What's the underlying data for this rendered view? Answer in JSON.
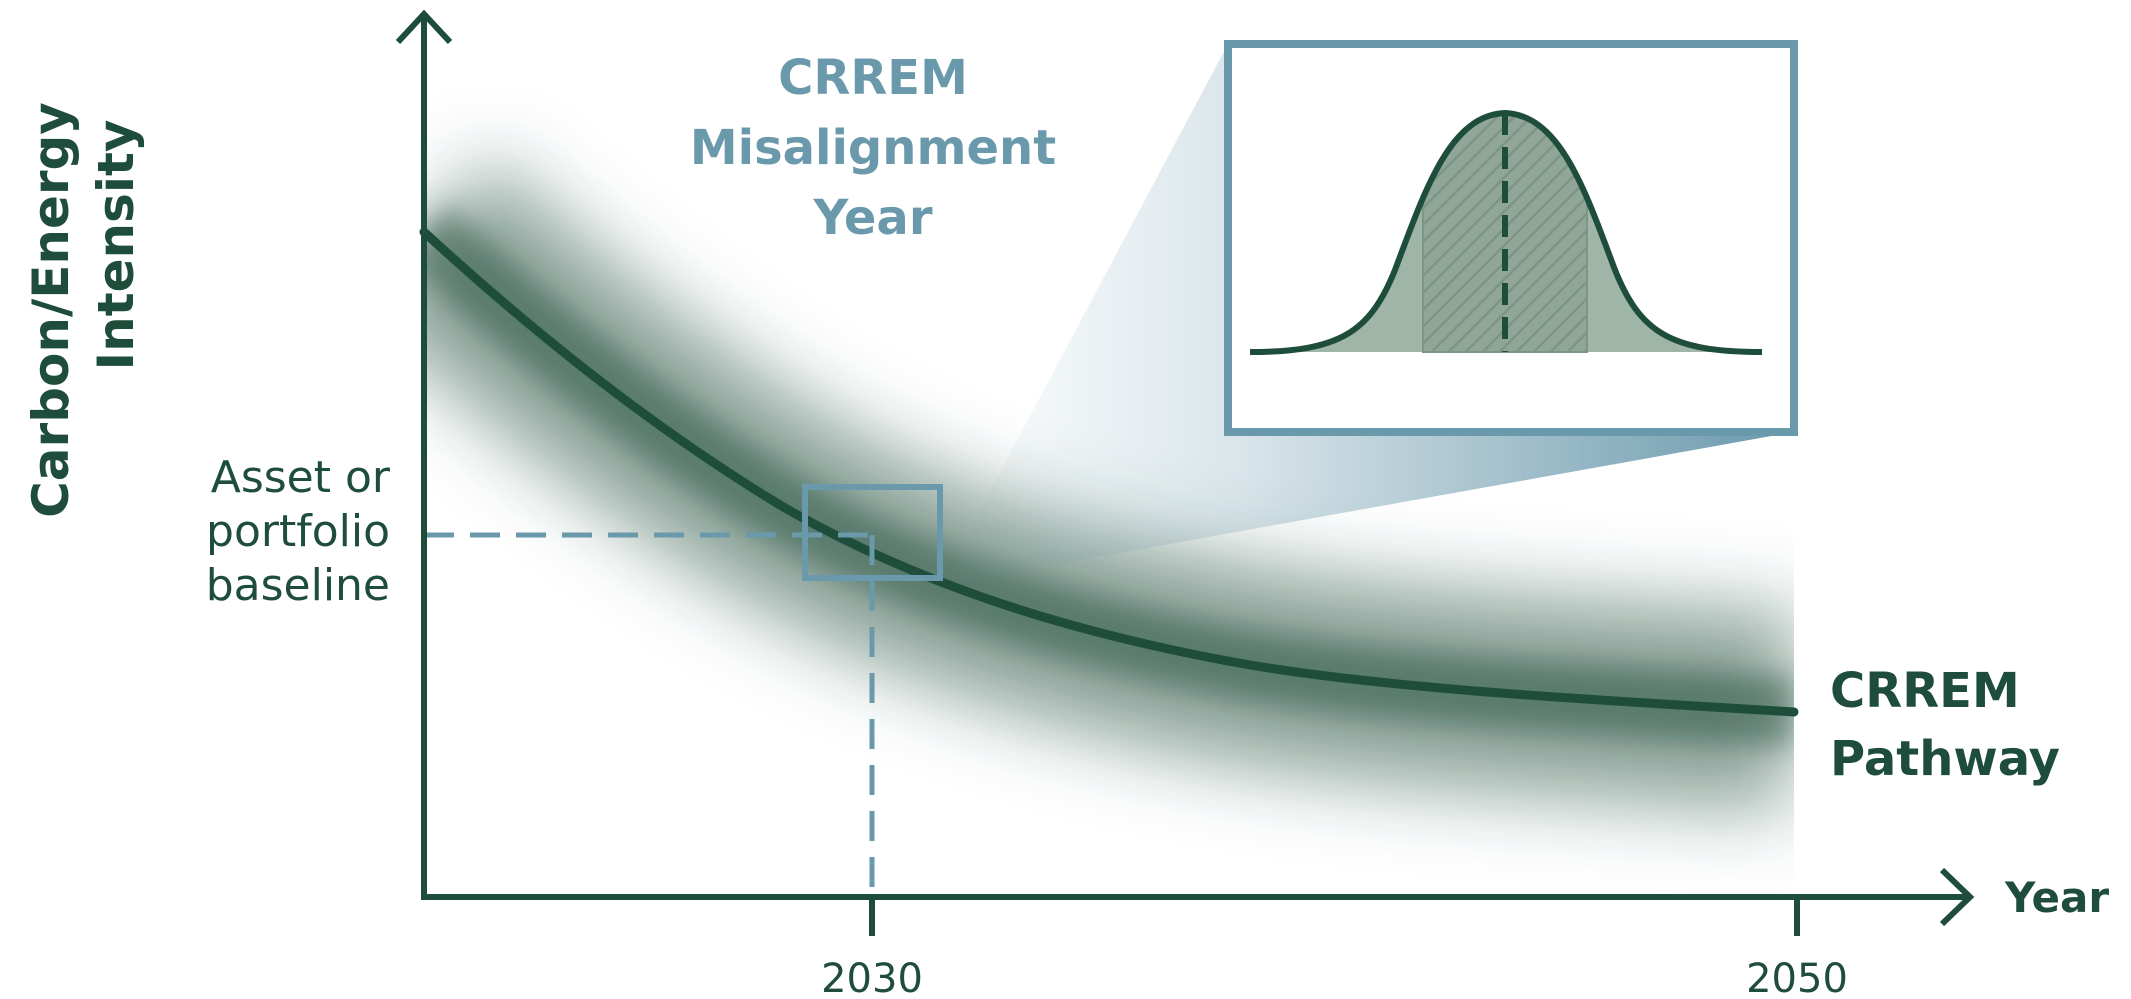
{
  "y_axis": {
    "title_line1": "Carbon/Energy",
    "title_line2": "Intensity"
  },
  "x_axis": {
    "title": "Year",
    "ticks": [
      "2030",
      "2050"
    ]
  },
  "baseline": {
    "line1": "Asset or",
    "line2": "portfolio",
    "line3": "baseline"
  },
  "callout": {
    "line1": "CRREM",
    "line2": "Misalignment",
    "line3": "Year"
  },
  "pathway": {
    "line1": "CRREM",
    "line2": "Pathway"
  },
  "colors": {
    "dark_green": "#1f4d3c",
    "steel_blue": "#6a99ac",
    "band_green": "#2f5a48",
    "inset_fill": "#9fb5a7"
  },
  "icons": {
    "y_arrow": "arrow-up-icon",
    "x_arrow": "arrow-right-icon"
  }
}
